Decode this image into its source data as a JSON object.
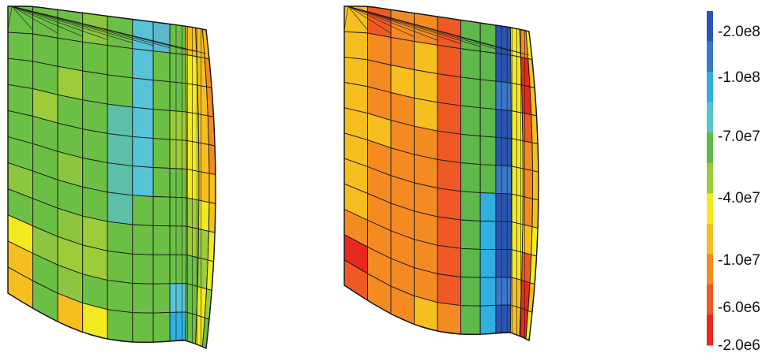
{
  "colorbar": {
    "labels": [
      "-2.0e8",
      "-1.0e8",
      "-7.0e7",
      "-4.0e7",
      "-1.0e7",
      "-6.0e6",
      "-2.0e6"
    ],
    "colors": [
      "#2a55b0",
      "#3b78c8",
      "#2fb0e0",
      "#5cc4cf",
      "#5fb84a",
      "#9ccc3a",
      "#f2ea20",
      "#f6be1e",
      "#f48a22",
      "#ef5a24",
      "#e8281e"
    ]
  },
  "models": [
    {
      "id": "left-model",
      "colors": [
        [
          "#6cbf45",
          "#6cbf45",
          "#6cbf45",
          "#8cc63f",
          "#6cbf45",
          "#56c3d6",
          "#5cb8cc",
          "#6cbf45",
          "#f6be1e",
          "#f6be1e",
          "#f6be1e"
        ],
        [
          "#6cbf45",
          "#6cbf45",
          "#6cbf45",
          "#6cbf45",
          "#6cbf45",
          "#56c3d6",
          "#6cbf45",
          "#6cbf45",
          "#f2ea20",
          "#f6be1e",
          "#f48a22"
        ],
        [
          "#6cbf45",
          "#6cbf45",
          "#9ccc3a",
          "#6cbf45",
          "#6cbf45",
          "#56c3d6",
          "#6cbf45",
          "#6cbf45",
          "#f2ea20",
          "#f6be1e",
          "#f48a22"
        ],
        [
          "#6cbf45",
          "#9ccc3a",
          "#6cbf45",
          "#6cbf45",
          "#5cbfa8",
          "#56c3d6",
          "#6cbf45",
          "#9ccc3a",
          "#f2ea20",
          "#f6be1e",
          "#f48a22"
        ],
        [
          "#6cbf45",
          "#6cbf45",
          "#6cbf45",
          "#6cbf45",
          "#5cbfa8",
          "#56c3d6",
          "#6cbf45",
          "#9ccc3a",
          "#f2ea20",
          "#f6be1e",
          "#f48a22"
        ],
        [
          "#6cbf45",
          "#6cbf45",
          "#8cc63f",
          "#6cbf45",
          "#5cbfa8",
          "#56c3d6",
          "#6cbf45",
          "#6cbf45",
          "#f2ea20",
          "#f6be1e",
          "#f6be1e"
        ],
        [
          "#8cc63f",
          "#6cbf45",
          "#6cbf45",
          "#6cbf45",
          "#5cbfa8",
          "#6cbf45",
          "#6cbf45",
          "#6cbf45",
          "#9ccc3a",
          "#f2ea20",
          "#f6be1e"
        ],
        [
          "#6cbf45",
          "#6cbf45",
          "#8cc63f",
          "#9ccc3a",
          "#6cbf45",
          "#6cbf45",
          "#6cbf45",
          "#6cbf45",
          "#9ccc3a",
          "#9ccc3a",
          "#f2ea20"
        ],
        [
          "#f2ea20",
          "#8cc63f",
          "#9ccc3a",
          "#9ccc3a",
          "#6cbf45",
          "#6cbf45",
          "#6cbf45",
          "#6cbf45",
          "#6cbf45",
          "#9ccc3a",
          "#f2ea20"
        ],
        [
          "#f6be1e",
          "#6cbf45",
          "#8cc63f",
          "#6cbf45",
          "#6cbf45",
          "#6cbf45",
          "#6cbf45",
          "#56c3d6",
          "#6cbf45",
          "#f2ea20",
          "#9ccc3a"
        ],
        [
          "#f6be1e",
          "#6cbf45",
          "#f6be1e",
          "#f2ea20",
          "#6cbf45",
          "#6cbf45",
          "#6cbf45",
          "#2fb0e0",
          "#6cbf45",
          "#f2ea20",
          "#6cbf45"
        ]
      ]
    },
    {
      "id": "right-model",
      "colors": [
        [
          "#f6be1e",
          "#ef5a24",
          "#f48a22",
          "#f48a22",
          "#ef5a24",
          "#5fb84a",
          "#5fb84a",
          "#2a55b0",
          "#f2ea20",
          "#f48a22",
          "#f2ea20"
        ],
        [
          "#f6be1e",
          "#f48a22",
          "#f48a22",
          "#f6be1e",
          "#ef5a24",
          "#5fb84a",
          "#5fb84a",
          "#2a55b0",
          "#f2ea20",
          "#e8281e",
          "#f6be1e"
        ],
        [
          "#f6be1e",
          "#f48a22",
          "#f6be1e",
          "#f6be1e",
          "#ef5a24",
          "#5fb84a",
          "#5fb84a",
          "#3b78c8",
          "#f2ea20",
          "#e8281e",
          "#f6be1e"
        ],
        [
          "#f6be1e",
          "#f48a22",
          "#f48a22",
          "#f6be1e",
          "#ef5a24",
          "#5fb84a",
          "#5fb84a",
          "#2a55b0",
          "#f2ea20",
          "#ef5a24",
          "#f6be1e"
        ],
        [
          "#f6be1e",
          "#f6be1e",
          "#f48a22",
          "#f48a22",
          "#ef5a24",
          "#5fb84a",
          "#5fb84a",
          "#2a55b0",
          "#f2ea20",
          "#f48a22",
          "#f6be1e"
        ],
        [
          "#f6be1e",
          "#f48a22",
          "#f48a22",
          "#f48a22",
          "#ef5a24",
          "#5fb84a",
          "#5fb84a",
          "#3b78c8",
          "#f2ea20",
          "#f48a22",
          "#f6be1e"
        ],
        [
          "#f6be1e",
          "#f48a22",
          "#f48a22",
          "#f48a22",
          "#ef5a24",
          "#5fb84a",
          "#2fb0e0",
          "#2a55b0",
          "#f2ea20",
          "#f48a22",
          "#f6be1e"
        ],
        [
          "#f6be1e",
          "#f48a22",
          "#f48a22",
          "#f48a22",
          "#ef5a24",
          "#5fb84a",
          "#2fb0e0",
          "#2a55b0",
          "#f2ea20",
          "#f6be1e",
          "#f2ea20"
        ],
        [
          "#f48a22",
          "#f48a22",
          "#f48a22",
          "#f48a22",
          "#ef5a24",
          "#5fb84a",
          "#2fb0e0",
          "#2a55b0",
          "#f2ea20",
          "#ef5a24",
          "#f2ea20"
        ],
        [
          "#e8281e",
          "#f48a22",
          "#f48a22",
          "#f48a22",
          "#ef5a24",
          "#5fb84a",
          "#2fb0e0",
          "#3b78c8",
          "#f6be1e",
          "#e8281e",
          "#f6be1e"
        ],
        [
          "#ef5a24",
          "#f48a22",
          "#f48a22",
          "#f6be1e",
          "#f48a22",
          "#5fb84a",
          "#2fb0e0",
          "#2a55b0",
          "#f6be1e",
          "#e8281e",
          "#f2ea20"
        ]
      ]
    }
  ]
}
